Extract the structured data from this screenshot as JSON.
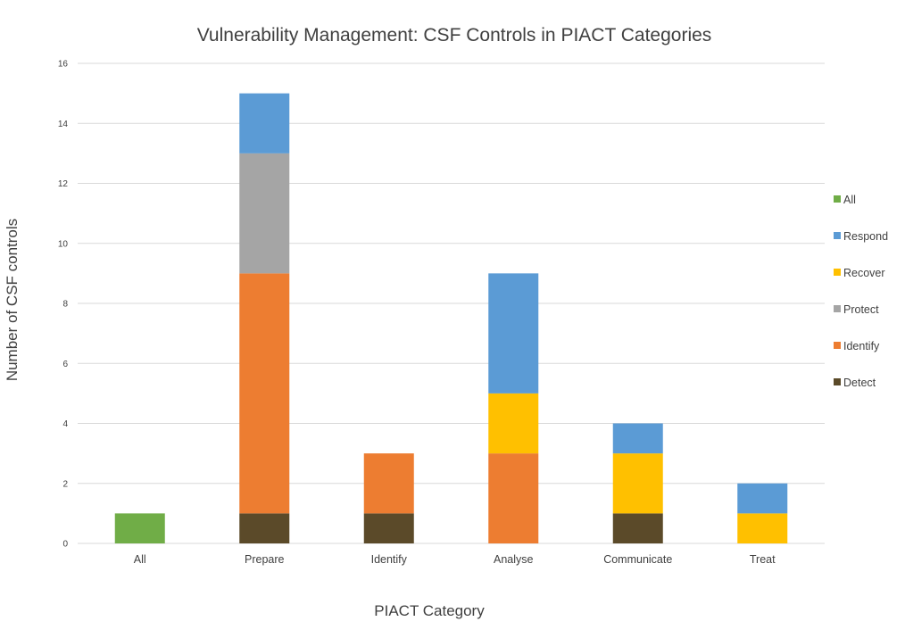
{
  "chart_data": {
    "type": "bar",
    "stacked": true,
    "title": "Vulnerability Management: CSF Controls in PIACT Categories",
    "xlabel": "PIACT Category",
    "ylabel": "Number of CSF controls",
    "ylim": [
      0,
      16
    ],
    "yticks": [
      0,
      2,
      4,
      6,
      8,
      10,
      12,
      14,
      16
    ],
    "grid": true,
    "legend_position": "right",
    "categories": [
      "All",
      "Prepare",
      "Identify",
      "Analyse",
      "Communicate",
      "Treat"
    ],
    "series": [
      {
        "name": "Detect",
        "color": "#5b4a29",
        "values": [
          0,
          1,
          1,
          0,
          1,
          0
        ]
      },
      {
        "name": "Identify",
        "color": "#ed7d31",
        "values": [
          0,
          8,
          2,
          3,
          0,
          0
        ]
      },
      {
        "name": "Protect",
        "color": "#a5a5a5",
        "values": [
          0,
          4,
          0,
          0,
          0,
          0
        ]
      },
      {
        "name": "Recover",
        "color": "#ffc000",
        "values": [
          0,
          0,
          0,
          2,
          2,
          1
        ]
      },
      {
        "name": "Respond",
        "color": "#5b9bd5",
        "values": [
          0,
          2,
          0,
          4,
          1,
          1
        ]
      },
      {
        "name": "All",
        "color": "#70ad47",
        "values": [
          1,
          0,
          0,
          0,
          0,
          0
        ]
      }
    ],
    "legend_order": [
      "All",
      "Respond",
      "Recover",
      "Protect",
      "Identify",
      "Detect"
    ]
  }
}
